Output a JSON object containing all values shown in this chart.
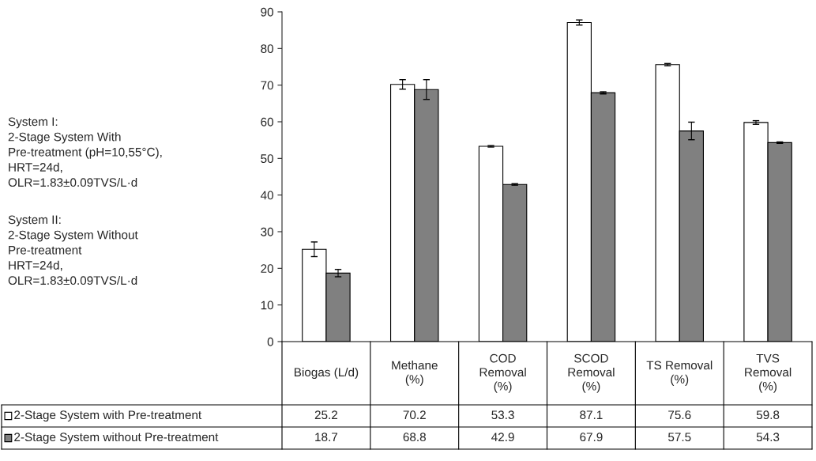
{
  "chart_data": {
    "type": "bar",
    "categories": [
      "Biogas (L/d)",
      "Methane\n(%)",
      "COD\nRemoval\n(%)",
      "SCOD\nRemoval\n(%)",
      "TS Removal\n(%)",
      "TVS\nRemoval\n(%)"
    ],
    "series": [
      {
        "name": "2-Stage System with Pre-treatment",
        "color": "#ffffff",
        "values": [
          25.2,
          70.2,
          53.3,
          87.1,
          75.6,
          59.8
        ],
        "errors": [
          2,
          1.3,
          0.2,
          0.7,
          0.3,
          0.5
        ]
      },
      {
        "name": "2-Stage System without Pre-treatment",
        "color": "#808080",
        "values": [
          18.7,
          68.8,
          42.9,
          67.9,
          57.5,
          54.3
        ],
        "errors": [
          1,
          2.7,
          0.2,
          0.3,
          2.4,
          0.2
        ]
      }
    ],
    "ylim": [
      0,
      90
    ],
    "yticks": [
      0,
      10,
      20,
      30,
      40,
      50,
      60,
      70,
      80,
      90
    ],
    "data_labels": true,
    "legend": "bottom",
    "grid": false,
    "annotations": [
      "System I:\n2-Stage System With\nPre-treatment (pH=10,55°C),\nHRT=24d,\nOLR=1.83±0.09TVS/L·d",
      "System II:\n2-Stage System Without\nPre-treatment\nHRT=24d,\nOLR=1.83±0.09TVS/L·d"
    ]
  }
}
